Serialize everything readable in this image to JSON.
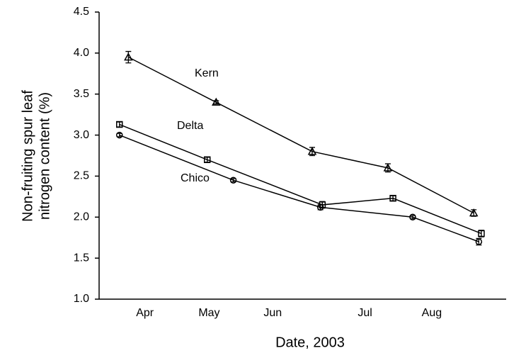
{
  "chart_data": {
    "type": "line",
    "xlabel": "Date, 2003",
    "ylabel": [
      "Non-fruiting spur leaf",
      "nitrogen content (%)"
    ],
    "xlim": [
      3.5,
      9.9
    ],
    "xticks": [
      {
        "value": 4.22,
        "label": "Apr"
      },
      {
        "value": 5.23,
        "label": "May"
      },
      {
        "value": 6.23,
        "label": "Jun"
      },
      {
        "value": 7.68,
        "label": "Jul"
      },
      {
        "value": 8.73,
        "label": "Aug"
      }
    ],
    "ylim": [
      1.0,
      4.5
    ],
    "yticks": [
      {
        "value": 1.0,
        "label": "1.0"
      },
      1.5,
      {
        "value": 2.0,
        "label": "2.0"
      },
      2.5,
      {
        "value": 3.0,
        "label": "3.0"
      },
      3.5,
      {
        "value": 4.0,
        "label": "4.0"
      },
      4.5
    ],
    "series": [
      {
        "name": "Kern",
        "color": "#000000",
        "marker": "triangle",
        "x": [
          3.96,
          5.34,
          6.85,
          8.04,
          9.39
        ],
        "values": [
          3.95,
          3.4,
          2.8,
          2.6,
          2.05
        ],
        "errors": [
          0.07,
          0.02,
          0.05,
          0.05,
          0.04
        ]
      },
      {
        "name": "Delta",
        "color": "#000000",
        "marker": "square",
        "x": [
          3.82,
          5.2,
          7.01,
          8.12,
          9.51
        ],
        "values": [
          3.13,
          2.7,
          2.15,
          2.23,
          1.8
        ],
        "errors": [
          0.03,
          0.03,
          0.04,
          0.03,
          0.04
        ]
      },
      {
        "name": "Chico",
        "color": "#000000",
        "marker": "circle",
        "x": [
          3.82,
          5.61,
          6.98,
          8.43,
          9.47
        ],
        "values": [
          3.0,
          2.45,
          2.12,
          2.0,
          1.7
        ],
        "errors": [
          0.02,
          0.02,
          0.03,
          0.02,
          0.04
        ]
      }
    ]
  }
}
